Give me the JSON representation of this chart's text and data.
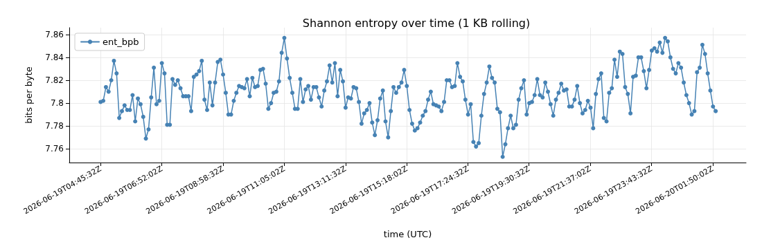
{
  "chart_data": {
    "type": "line",
    "title": "Shannon entropy over time (1 KB rolling)",
    "xlabel": "time (UTC)",
    "ylabel": "bits per byte",
    "xlim": [
      "2026-06-19T03:40:48Z",
      "2026-06-20T02:58:48Z"
    ],
    "xticks": [
      "2026-06-19T04:45:32Z",
      "2026-06-19T06:52:02Z",
      "2026-06-19T08:58:32Z",
      "2026-06-19T11:05:02Z",
      "2026-06-19T13:11:32Z",
      "2026-06-19T15:18:02Z",
      "2026-06-19T17:24:32Z",
      "2026-06-19T19:30:32Z",
      "2026-06-19T21:37:02Z",
      "2026-06-19T23:43:32Z",
      "2026-06-20T01:50:02Z"
    ],
    "ylim": [
      7.748,
      7.866
    ],
    "yticks": [
      7.76,
      7.78,
      7.8,
      7.82,
      7.84,
      7.86
    ],
    "grid": true,
    "legend": "top left",
    "marker": "circle",
    "line_style": "solid",
    "series": [
      {
        "name": "ent_bpb",
        "color": "#4682b4",
        "x": [
          "2026-06-19T04:45:32Z",
          "2026-06-19T04:51:02Z",
          "2026-06-19T04:56:32Z",
          "2026-06-19T05:02:02Z",
          "2026-06-19T05:07:32Z",
          "2026-06-19T05:13:02Z",
          "2026-06-19T05:18:32Z",
          "2026-06-19T05:24:02Z",
          "2026-06-19T05:29:32Z",
          "2026-06-19T05:35:02Z",
          "2026-06-19T05:40:32Z",
          "2026-06-19T05:46:02Z",
          "2026-06-19T05:51:32Z",
          "2026-06-19T05:57:02Z",
          "2026-06-19T06:02:32Z",
          "2026-06-19T06:08:02Z",
          "2026-06-19T06:13:32Z",
          "2026-06-19T06:19:02Z",
          "2026-06-19T06:24:32Z",
          "2026-06-19T06:30:02Z",
          "2026-06-19T06:35:32Z",
          "2026-06-19T06:41:02Z",
          "2026-06-19T06:46:32Z",
          "2026-06-19T06:52:02Z",
          "2026-06-19T06:57:32Z",
          "2026-06-19T07:03:02Z",
          "2026-06-19T07:08:32Z",
          "2026-06-19T07:14:02Z",
          "2026-06-19T07:19:32Z",
          "2026-06-19T07:25:02Z",
          "2026-06-19T07:30:32Z",
          "2026-06-19T07:36:02Z",
          "2026-06-19T07:41:32Z",
          "2026-06-19T07:47:02Z",
          "2026-06-19T07:52:32Z",
          "2026-06-19T07:58:02Z",
          "2026-06-19T08:03:32Z",
          "2026-06-19T08:09:02Z",
          "2026-06-19T08:14:32Z",
          "2026-06-19T08:20:02Z",
          "2026-06-19T08:25:32Z",
          "2026-06-19T08:31:02Z",
          "2026-06-19T08:36:32Z",
          "2026-06-19T08:42:02Z",
          "2026-06-19T08:47:32Z",
          "2026-06-19T08:53:02Z",
          "2026-06-19T08:58:32Z",
          "2026-06-19T09:04:02Z",
          "2026-06-19T09:09:32Z",
          "2026-06-19T09:15:02Z",
          "2026-06-19T09:20:32Z",
          "2026-06-19T09:26:02Z",
          "2026-06-19T09:31:32Z",
          "2026-06-19T09:37:02Z",
          "2026-06-19T09:42:32Z",
          "2026-06-19T09:48:02Z",
          "2026-06-19T09:53:32Z",
          "2026-06-19T09:59:02Z",
          "2026-06-19T10:04:32Z",
          "2026-06-19T10:10:02Z",
          "2026-06-19T10:15:32Z",
          "2026-06-19T10:21:02Z",
          "2026-06-19T10:26:32Z",
          "2026-06-19T10:32:02Z",
          "2026-06-19T10:37:32Z",
          "2026-06-19T10:43:02Z",
          "2026-06-19T10:48:32Z",
          "2026-06-19T10:54:02Z",
          "2026-06-19T10:59:32Z",
          "2026-06-19T11:05:02Z",
          "2026-06-19T11:10:32Z",
          "2026-06-19T11:16:02Z",
          "2026-06-19T11:21:32Z",
          "2026-06-19T11:27:02Z",
          "2026-06-19T11:32:32Z",
          "2026-06-19T11:38:02Z",
          "2026-06-19T11:43:32Z",
          "2026-06-19T11:49:02Z",
          "2026-06-19T11:54:32Z",
          "2026-06-19T12:00:02Z",
          "2026-06-19T12:05:32Z",
          "2026-06-19T12:11:02Z",
          "2026-06-19T12:16:32Z",
          "2026-06-19T12:22:02Z",
          "2026-06-19T12:27:32Z",
          "2026-06-19T12:33:02Z",
          "2026-06-19T12:38:32Z",
          "2026-06-19T12:44:02Z",
          "2026-06-19T12:49:32Z",
          "2026-06-19T12:55:02Z",
          "2026-06-19T13:00:32Z",
          "2026-06-19T13:06:02Z",
          "2026-06-19T13:11:32Z",
          "2026-06-19T13:17:02Z",
          "2026-06-19T13:22:32Z",
          "2026-06-19T13:28:02Z",
          "2026-06-19T13:33:32Z",
          "2026-06-19T13:39:02Z",
          "2026-06-19T13:44:32Z",
          "2026-06-19T13:50:02Z",
          "2026-06-19T13:55:32Z",
          "2026-06-19T14:01:02Z",
          "2026-06-19T14:06:32Z",
          "2026-06-19T14:12:02Z",
          "2026-06-19T14:17:32Z",
          "2026-06-19T14:23:02Z",
          "2026-06-19T14:28:32Z",
          "2026-06-19T14:34:02Z",
          "2026-06-19T14:39:32Z",
          "2026-06-19T14:45:02Z",
          "2026-06-19T14:50:32Z",
          "2026-06-19T14:56:02Z",
          "2026-06-19T15:01:32Z",
          "2026-06-19T15:07:02Z",
          "2026-06-19T15:12:32Z",
          "2026-06-19T15:18:02Z",
          "2026-06-19T15:23:32Z",
          "2026-06-19T15:29:02Z",
          "2026-06-19T15:34:32Z",
          "2026-06-19T15:40:02Z",
          "2026-06-19T15:45:32Z",
          "2026-06-19T15:51:02Z",
          "2026-06-19T15:56:32Z",
          "2026-06-19T16:02:02Z",
          "2026-06-19T16:07:32Z",
          "2026-06-19T16:13:02Z",
          "2026-06-19T16:18:32Z",
          "2026-06-19T16:24:02Z",
          "2026-06-19T16:29:32Z",
          "2026-06-19T16:35:02Z",
          "2026-06-19T16:40:32Z",
          "2026-06-19T16:46:02Z",
          "2026-06-19T16:51:32Z",
          "2026-06-19T16:57:02Z",
          "2026-06-19T17:02:32Z",
          "2026-06-19T17:08:02Z",
          "2026-06-19T17:13:32Z",
          "2026-06-19T17:19:02Z",
          "2026-06-19T17:24:32Z",
          "2026-06-19T17:30:02Z",
          "2026-06-19T17:35:32Z",
          "2026-06-19T17:41:02Z",
          "2026-06-19T17:46:32Z",
          "2026-06-19T17:52:02Z",
          "2026-06-19T17:57:32Z",
          "2026-06-19T18:03:02Z",
          "2026-06-19T18:08:32Z",
          "2026-06-19T18:14:02Z",
          "2026-06-19T18:19:32Z",
          "2026-06-19T18:25:02Z",
          "2026-06-19T18:30:32Z",
          "2026-06-19T18:36:02Z",
          "2026-06-19T18:41:32Z",
          "2026-06-19T18:47:02Z",
          "2026-06-19T18:52:32Z",
          "2026-06-19T18:58:02Z",
          "2026-06-19T19:03:32Z",
          "2026-06-19T19:09:02Z",
          "2026-06-19T19:14:32Z",
          "2026-06-19T19:20:02Z",
          "2026-06-19T19:25:32Z",
          "2026-06-19T19:31:02Z",
          "2026-06-19T19:36:32Z",
          "2026-06-19T19:42:02Z",
          "2026-06-19T19:47:32Z",
          "2026-06-19T19:53:02Z",
          "2026-06-19T19:58:32Z",
          "2026-06-19T20:04:02Z",
          "2026-06-19T20:09:32Z",
          "2026-06-19T20:15:02Z",
          "2026-06-19T20:20:32Z",
          "2026-06-19T20:26:02Z",
          "2026-06-19T20:31:32Z",
          "2026-06-19T20:37:02Z",
          "2026-06-19T20:42:32Z",
          "2026-06-19T20:48:02Z",
          "2026-06-19T20:53:32Z",
          "2026-06-19T20:59:02Z",
          "2026-06-19T21:04:32Z",
          "2026-06-19T21:10:02Z",
          "2026-06-19T21:15:32Z",
          "2026-06-19T21:21:02Z",
          "2026-06-19T21:26:32Z",
          "2026-06-19T21:32:02Z",
          "2026-06-19T21:37:32Z",
          "2026-06-19T21:43:02Z",
          "2026-06-19T21:48:32Z",
          "2026-06-19T21:54:02Z",
          "2026-06-19T21:59:32Z",
          "2026-06-19T22:05:02Z",
          "2026-06-19T22:10:32Z",
          "2026-06-19T22:16:02Z",
          "2026-06-19T22:21:32Z",
          "2026-06-19T22:27:02Z",
          "2026-06-19T22:32:32Z",
          "2026-06-19T22:38:02Z",
          "2026-06-19T22:43:32Z",
          "2026-06-19T22:49:02Z",
          "2026-06-19T22:54:32Z",
          "2026-06-19T23:00:02Z",
          "2026-06-19T23:05:32Z",
          "2026-06-19T23:11:02Z",
          "2026-06-19T23:16:32Z",
          "2026-06-19T23:22:02Z",
          "2026-06-19T23:27:32Z",
          "2026-06-19T23:33:02Z",
          "2026-06-19T23:38:32Z",
          "2026-06-19T23:44:02Z",
          "2026-06-19T23:49:32Z",
          "2026-06-19T23:55:02Z",
          "2026-06-20T00:00:32Z",
          "2026-06-20T00:06:02Z",
          "2026-06-20T00:11:32Z",
          "2026-06-20T00:17:02Z",
          "2026-06-20T00:22:32Z",
          "2026-06-20T00:28:02Z",
          "2026-06-20T00:33:32Z",
          "2026-06-20T00:39:02Z",
          "2026-06-20T00:44:32Z",
          "2026-06-20T00:50:02Z",
          "2026-06-20T00:55:32Z",
          "2026-06-20T01:01:02Z",
          "2026-06-20T01:06:32Z",
          "2026-06-20T01:12:02Z",
          "2026-06-20T01:17:32Z",
          "2026-06-20T01:23:02Z",
          "2026-06-20T01:28:32Z",
          "2026-06-20T01:34:02Z",
          "2026-06-20T01:39:32Z",
          "2026-06-20T01:45:02Z",
          "2026-06-20T01:50:32Z",
          "2026-06-20T01:56:02Z"
        ],
        "values": [
          7.801,
          7.802,
          7.814,
          7.81,
          7.82,
          7.837,
          7.826,
          7.787,
          7.793,
          7.798,
          7.794,
          7.794,
          7.807,
          7.784,
          7.804,
          7.799,
          7.788,
          7.769,
          7.777,
          7.805,
          7.831,
          7.799,
          7.802,
          7.835,
          7.826,
          7.781,
          7.781,
          7.821,
          7.816,
          7.82,
          7.813,
          7.806,
          7.806,
          7.806,
          7.793,
          7.823,
          7.825,
          7.828,
          7.837,
          7.803,
          7.794,
          7.818,
          7.798,
          7.818,
          7.836,
          7.838,
          7.825,
          7.809,
          7.79,
          7.79,
          7.802,
          7.809,
          7.815,
          7.814,
          7.813,
          7.821,
          7.806,
          7.822,
          7.814,
          7.815,
          7.829,
          7.83,
          7.817,
          7.795,
          7.8,
          7.809,
          7.81,
          7.819,
          7.844,
          7.857,
          7.839,
          7.822,
          7.809,
          7.795,
          7.795,
          7.821,
          7.801,
          7.812,
          7.815,
          7.803,
          7.814,
          7.814,
          7.805,
          7.797,
          7.811,
          7.819,
          7.833,
          7.818,
          7.835,
          7.806,
          7.829,
          7.819,
          7.796,
          7.805,
          7.804,
          7.814,
          7.813,
          7.801,
          7.782,
          7.791,
          7.794,
          7.8,
          7.783,
          7.772,
          7.785,
          7.804,
          7.811,
          7.784,
          7.77,
          7.793,
          7.814,
          7.809,
          7.814,
          7.818,
          7.829,
          7.815,
          7.794,
          7.782,
          7.776,
          7.778,
          7.783,
          7.789,
          7.793,
          7.803,
          7.81,
          7.799,
          7.798,
          7.797,
          7.793,
          7.801,
          7.82,
          7.82,
          7.814,
          7.815,
          7.835,
          7.823,
          7.819,
          7.803,
          7.79,
          7.799,
          7.766,
          7.762,
          7.765,
          7.789,
          7.808,
          7.818,
          7.832,
          7.822,
          7.818,
          7.795,
          7.792,
          7.753,
          7.764,
          7.778,
          7.789,
          7.778,
          7.781,
          7.803,
          7.813,
          7.82,
          7.79,
          7.8,
          7.801,
          7.807,
          7.821,
          7.807,
          7.805,
          7.818,
          7.81,
          7.799,
          7.789,
          7.803,
          7.809,
          7.817,
          7.811,
          7.812,
          7.797,
          7.797,
          7.803,
          7.815,
          7.8,
          7.791,
          7.794,
          7.802,
          7.796,
          7.778,
          7.808,
          7.821,
          7.826,
          7.787,
          7.784,
          7.809,
          7.813,
          7.838,
          7.823,
          7.845,
          7.843,
          7.814,
          7.808,
          7.791,
          7.823,
          7.824,
          7.84,
          7.84,
          7.828,
          7.813,
          7.829,
          7.846,
          7.848,
          7.845,
          7.853,
          7.844,
          7.857,
          7.854,
          7.84,
          7.83,
          7.826,
          7.835,
          7.831,
          7.818,
          7.807,
          7.8,
          7.79,
          7.793,
          7.827,
          7.831,
          7.851,
          7.843,
          7.826,
          7.811,
          7.797,
          7.793
        ]
      }
    ]
  }
}
